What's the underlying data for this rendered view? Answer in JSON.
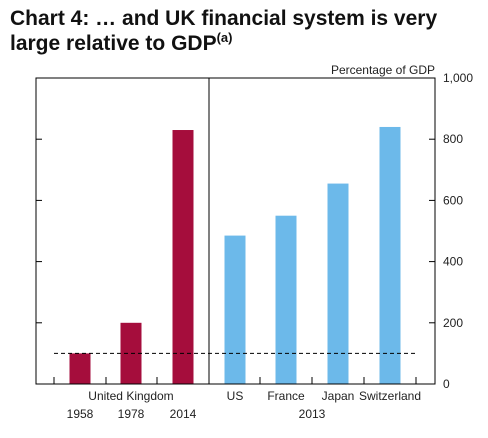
{
  "title": {
    "text": "Chart 4: … and UK financial system is very large relative to GDP",
    "superscript": "(a)"
  },
  "chart_data": {
    "type": "bar",
    "ylabel": "Percentage of GDP",
    "ylim": [
      0,
      1000
    ],
    "yticks": [
      "0",
      "200",
      "400",
      "600",
      "800",
      "1,000"
    ],
    "grid": false,
    "reference_line": {
      "value": 100,
      "style": "dashed"
    },
    "groups": [
      {
        "label": "United Kingdom",
        "color": "#a50d3c",
        "bars": [
          {
            "category": "1958",
            "value": 100
          },
          {
            "category": "1978",
            "value": 200
          },
          {
            "category": "2014",
            "value": 830
          }
        ]
      },
      {
        "label": "2013",
        "color": "#6cb9ea",
        "bars": [
          {
            "category": "US",
            "value": 485
          },
          {
            "category": "France",
            "value": 550
          },
          {
            "category": "Japan",
            "value": 655
          },
          {
            "category": "Switzerland",
            "value": 840
          }
        ]
      }
    ]
  }
}
